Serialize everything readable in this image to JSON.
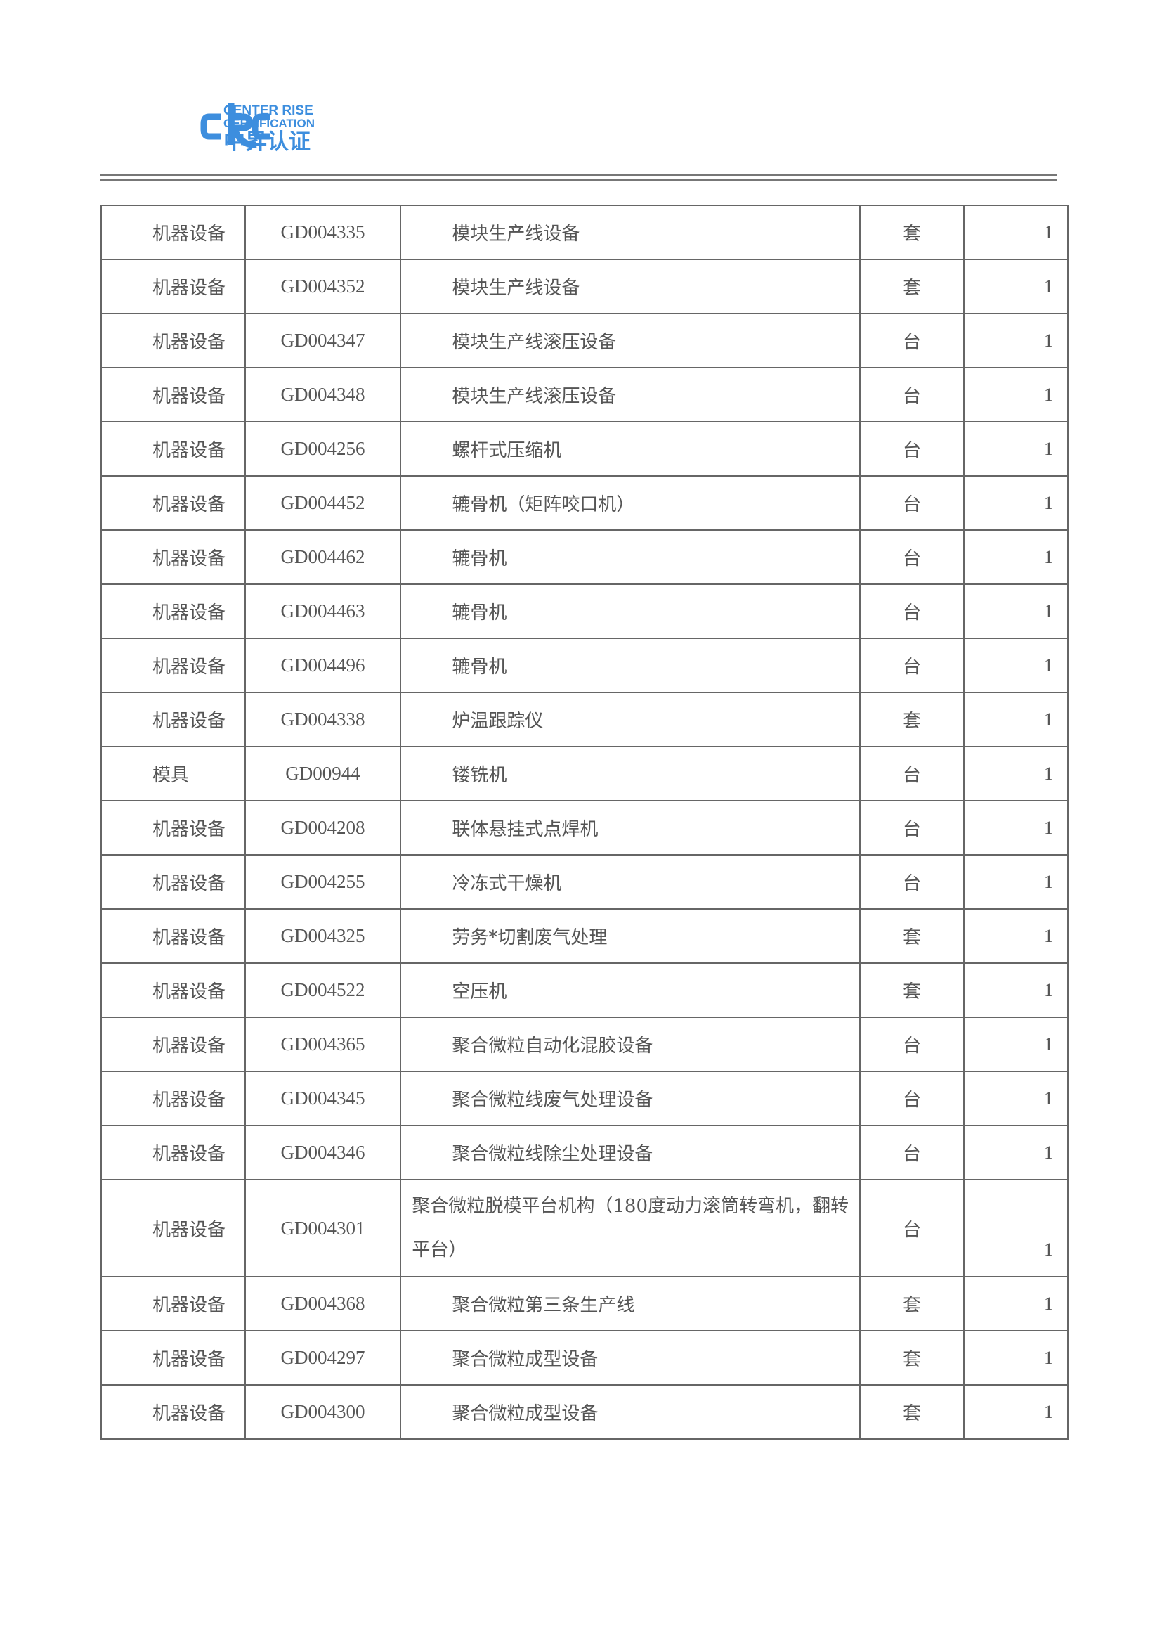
{
  "header": {
    "logo_text": [
      "CENTER RISE",
      "CERTIFICATION",
      "中昇认证"
    ],
    "brand_color": "#3d8ede"
  },
  "table": {
    "rows": [
      [
        "机器设备",
        "GD004335",
        "模块生产线设备",
        "套",
        "1"
      ],
      [
        "机器设备",
        "GD004352",
        "模块生产线设备",
        "套",
        "1"
      ],
      [
        "机器设备",
        "GD004347",
        "模块生产线滚压设备",
        "台",
        "1"
      ],
      [
        "机器设备",
        "GD004348",
        "模块生产线滚压设备",
        "台",
        "1"
      ],
      [
        "机器设备",
        "GD004256",
        "螺杆式压缩机",
        "台",
        "1"
      ],
      [
        "机器设备",
        "GD004452",
        "辘骨机（矩阵咬口机）",
        "台",
        "1"
      ],
      [
        "机器设备",
        "GD004462",
        "辘骨机",
        "台",
        "1"
      ],
      [
        "机器设备",
        "GD004463",
        "辘骨机",
        "台",
        "1"
      ],
      [
        "机器设备",
        "GD004496",
        "辘骨机",
        "台",
        "1"
      ],
      [
        "机器设备",
        "GD004338",
        "炉温跟踪仪",
        "套",
        "1"
      ],
      [
        "模具",
        "GD00944",
        "镂铣机",
        "台",
        "1"
      ],
      [
        "机器设备",
        "GD004208",
        "联体悬挂式点焊机",
        "台",
        "1"
      ],
      [
        "机器设备",
        "GD004255",
        "冷冻式干燥机",
        "台",
        "1"
      ],
      [
        "机器设备",
        "GD004325",
        "劳务*切割废气处理",
        "套",
        "1"
      ],
      [
        "机器设备",
        "GD004522",
        "空压机",
        "套",
        "1"
      ],
      [
        "机器设备",
        "GD004365",
        "聚合微粒自动化混胶设备",
        "台",
        "1"
      ],
      [
        "机器设备",
        "GD004345",
        "聚合微粒线废气处理设备",
        "台",
        "1"
      ],
      [
        "机器设备",
        "GD004346",
        "聚合微粒线除尘处理设备",
        "台",
        "1"
      ],
      [
        "机器设备",
        "GD004301",
        "聚合微粒脱模平台机构（180度动力滚筒转弯机，翻转平台）",
        "台",
        "1"
      ],
      [
        "机器设备",
        "GD004368",
        "聚合微粒第三条生产线",
        "套",
        "1"
      ],
      [
        "机器设备",
        "GD004297",
        "聚合微粒成型设备",
        "套",
        "1"
      ],
      [
        "机器设备",
        "GD004300",
        "聚合微粒成型设备",
        "套",
        "1"
      ]
    ]
  }
}
